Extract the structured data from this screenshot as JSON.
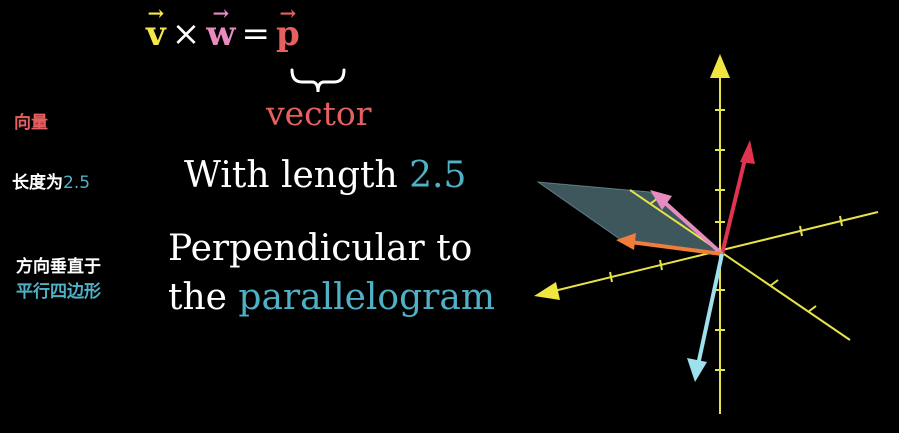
{
  "equation": {
    "v": "v",
    "w": "w",
    "p": "p",
    "times": "×",
    "equals": "=",
    "arrow": "→"
  },
  "brace_label": "vector",
  "chinese": {
    "vector": "向量",
    "length_prefix": "长度为",
    "length_value": "2.5",
    "perp_line1": "方向垂直于",
    "perp_line2": "平行四边形"
  },
  "english": {
    "length_prefix": "With length ",
    "length_value": "2.5",
    "perp_line1": "Perpendicular to",
    "perp_line2_prefix": "the ",
    "perp_line2_highlight": "parallelogram"
  },
  "colors": {
    "background": "#000000",
    "v": "#f5e64a",
    "w": "#e88cc0",
    "p": "#e66060",
    "highlight": "#4fb0c6",
    "axis": "#e6e34a",
    "vec_p": "#e0334f",
    "vec_w": "#e88cc0",
    "vec_v": "#f07d3a",
    "vec_down": "#9fe0ee",
    "parallelogram": "#6f9fa8"
  }
}
